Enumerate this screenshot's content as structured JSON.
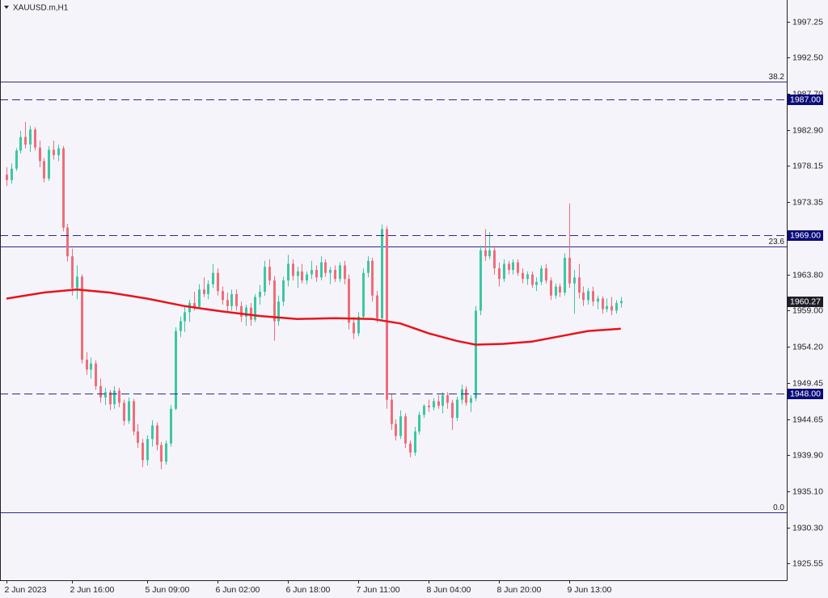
{
  "chart_data": {
    "type": "candlestick",
    "title": "XAUUSD.m,H1",
    "up_color": "#3cc7a2",
    "down_color": "#ef6d79",
    "xlim": [
      -1.38,
      166.38
    ],
    "ylim": [
      1923.3,
      2000.14
    ],
    "xticks": [
      {
        "value": 0,
        "label": "2 Jun 2023"
      },
      {
        "value": 14,
        "label": "2 Jun 16:00"
      },
      {
        "value": 30,
        "label": "5 Jun 09:00"
      },
      {
        "value": 45,
        "label": "6 Jun 02:00"
      },
      {
        "value": 60,
        "label": "6 Jun 18:00"
      },
      {
        "value": 75,
        "label": "7 Jun 11:00"
      },
      {
        "value": 90,
        "label": "8 Jun 04:00"
      },
      {
        "value": 105,
        "label": "8 Jun 20:00"
      },
      {
        "value": 120,
        "label": "9 Jun 13:00"
      }
    ],
    "yticks": [
      {
        "value": 1997.25,
        "label": "1997.25"
      },
      {
        "value": 1992.5,
        "label": "1992.50"
      },
      {
        "value": 1987.7,
        "label": "1987.70"
      },
      {
        "value": 1982.9,
        "label": "1982.90"
      },
      {
        "value": 1978.15,
        "label": "1978.15"
      },
      {
        "value": 1973.35,
        "label": "1973.35"
      },
      {
        "value": 1963.8,
        "label": "1963.80"
      },
      {
        "value": 1959.0,
        "label": "1959.00"
      },
      {
        "value": 1954.2,
        "label": "1954.20"
      },
      {
        "value": 1949.45,
        "label": "1949.45"
      },
      {
        "value": 1944.65,
        "label": "1944.65"
      },
      {
        "value": 1939.9,
        "label": "1939.90"
      },
      {
        "value": 1935.1,
        "label": "1935.10"
      },
      {
        "value": 1930.3,
        "label": "1930.30"
      },
      {
        "value": 1925.55,
        "label": "1925.55"
      }
    ],
    "fib_levels": [
      {
        "value": 1989.33,
        "label": "38.2"
      },
      {
        "value": 1967.5,
        "label": "23.6"
      },
      {
        "value": 1932.3,
        "label": "0.0"
      }
    ],
    "price_lines": [
      {
        "value": 1987,
        "label": "1987.00"
      },
      {
        "value": 1969,
        "label": "1969.00"
      },
      {
        "value": 1948,
        "label": "1948.00"
      }
    ],
    "current_price": {
      "value": 1960.27,
      "label": "1960.27"
    },
    "ma": {
      "color": "#e8141c",
      "x": [
        0,
        8,
        15,
        22,
        30,
        38,
        46,
        54,
        62,
        70,
        78,
        84,
        90,
        96,
        100,
        106,
        112,
        118,
        124,
        131
      ],
      "values": [
        1960.6,
        1961.4,
        1961.8,
        1961.4,
        1960.6,
        1959.6,
        1958.9,
        1958.3,
        1957.9,
        1958.0,
        1957.9,
        1957.3,
        1956.0,
        1955.0,
        1954.5,
        1954.6,
        1954.9,
        1955.6,
        1956.3,
        1956.6
      ]
    },
    "ohlc": [
      [
        1977.0,
        1978.0,
        1975.5,
        1976.3
      ],
      [
        1976.3,
        1978.5,
        1975.8,
        1977.8
      ],
      [
        1977.8,
        1980.5,
        1977.5,
        1980.2
      ],
      [
        1980.2,
        1982.8,
        1979.8,
        1982.0
      ],
      [
        1982.0,
        1984.0,
        1980.5,
        1981.0
      ],
      [
        1981.0,
        1983.5,
        1980.0,
        1983.0
      ],
      [
        1983.0,
        1983.3,
        1980.2,
        1980.6
      ],
      [
        1980.6,
        1981.5,
        1978.0,
        1978.8
      ],
      [
        1978.8,
        1979.2,
        1976.0,
        1976.5
      ],
      [
        1976.5,
        1980.8,
        1976.2,
        1980.3
      ],
      [
        1980.3,
        1981.5,
        1979.0,
        1979.6
      ],
      [
        1979.6,
        1981.0,
        1978.8,
        1980.5
      ],
      [
        1980.5,
        1980.8,
        1969.5,
        1970.0
      ],
      [
        1970.0,
        1970.5,
        1965.5,
        1966.2
      ],
      [
        1966.2,
        1967.2,
        1961.0,
        1962.0
      ],
      [
        1962.0,
        1965.0,
        1960.5,
        1963.5
      ],
      [
        1963.5,
        1963.8,
        1952.0,
        1952.5
      ],
      [
        1952.5,
        1953.5,
        1950.5,
        1951.2
      ],
      [
        1951.2,
        1952.8,
        1950.0,
        1952.0
      ],
      [
        1952.0,
        1952.4,
        1948.5,
        1949.0
      ],
      [
        1949.0,
        1950.0,
        1946.8,
        1947.5
      ],
      [
        1947.5,
        1948.8,
        1946.5,
        1948.2
      ],
      [
        1948.2,
        1948.5,
        1945.8,
        1946.6
      ],
      [
        1946.6,
        1949.0,
        1946.0,
        1948.4
      ],
      [
        1948.4,
        1948.8,
        1946.2,
        1946.8
      ],
      [
        1946.8,
        1947.2,
        1943.8,
        1944.4
      ],
      [
        1944.4,
        1947.5,
        1944.0,
        1947.0
      ],
      [
        1947.0,
        1947.3,
        1942.5,
        1943.0
      ],
      [
        1943.0,
        1944.0,
        1940.8,
        1941.5
      ],
      [
        1941.5,
        1942.0,
        1938.3,
        1939.2
      ],
      [
        1939.2,
        1942.5,
        1938.5,
        1942.0
      ],
      [
        1942.0,
        1944.5,
        1941.0,
        1943.8
      ],
      [
        1943.8,
        1944.2,
        1940.5,
        1941.2
      ],
      [
        1941.2,
        1941.6,
        1938.0,
        1939.0
      ],
      [
        1939.0,
        1941.8,
        1938.6,
        1941.4
      ],
      [
        1941.4,
        1946.5,
        1941.0,
        1946.0
      ],
      [
        1946.0,
        1956.8,
        1945.8,
        1956.3
      ],
      [
        1956.3,
        1958.2,
        1955.5,
        1957.6
      ],
      [
        1957.6,
        1959.5,
        1956.2,
        1958.8
      ],
      [
        1958.8,
        1960.4,
        1957.5,
        1960.0
      ],
      [
        1960.0,
        1961.5,
        1959.0,
        1959.5
      ],
      [
        1959.5,
        1962.5,
        1959.2,
        1961.8
      ],
      [
        1961.8,
        1963.4,
        1960.8,
        1961.2
      ],
      [
        1961.2,
        1963.0,
        1960.5,
        1962.5
      ],
      [
        1962.5,
        1965.2,
        1962.0,
        1964.0
      ],
      [
        1964.0,
        1964.6,
        1961.0,
        1961.6
      ],
      [
        1961.6,
        1962.2,
        1959.8,
        1960.4
      ],
      [
        1960.4,
        1961.4,
        1958.8,
        1959.6
      ],
      [
        1959.6,
        1961.8,
        1959.0,
        1961.2
      ],
      [
        1961.2,
        1961.8,
        1959.0,
        1959.6
      ],
      [
        1959.6,
        1960.2,
        1957.5,
        1958.2
      ],
      [
        1958.2,
        1959.8,
        1957.0,
        1959.4
      ],
      [
        1959.4,
        1960.0,
        1957.0,
        1957.8
      ],
      [
        1957.8,
        1961.2,
        1957.5,
        1960.8
      ],
      [
        1960.8,
        1962.4,
        1959.8,
        1961.5
      ],
      [
        1961.5,
        1965.6,
        1961.0,
        1964.8
      ],
      [
        1964.8,
        1965.8,
        1962.4,
        1963.0
      ],
      [
        1963.0,
        1963.6,
        1955.0,
        1957.6
      ],
      [
        1957.6,
        1961.0,
        1957.0,
        1960.2
      ],
      [
        1960.2,
        1963.5,
        1959.6,
        1963.0
      ],
      [
        1963.0,
        1966.4,
        1962.2,
        1965.2
      ],
      [
        1965.2,
        1965.8,
        1963.0,
        1963.6
      ],
      [
        1963.6,
        1964.8,
        1962.0,
        1964.2
      ],
      [
        1964.2,
        1965.2,
        1962.6,
        1963.0
      ],
      [
        1963.0,
        1964.2,
        1962.5,
        1963.8
      ],
      [
        1963.8,
        1965.6,
        1963.2,
        1964.4
      ],
      [
        1964.4,
        1965.0,
        1962.8,
        1963.4
      ],
      [
        1963.4,
        1966.2,
        1963.0,
        1965.4
      ],
      [
        1965.4,
        1965.8,
        1963.5,
        1964.0
      ],
      [
        1964.0,
        1964.8,
        1962.5,
        1964.4
      ],
      [
        1964.4,
        1965.0,
        1962.8,
        1963.2
      ],
      [
        1963.2,
        1965.4,
        1962.8,
        1965.0
      ],
      [
        1965.0,
        1965.6,
        1962.5,
        1963.2
      ],
      [
        1963.2,
        1963.8,
        1956.5,
        1957.4
      ],
      [
        1957.4,
        1958.2,
        1955.2,
        1956.0
      ],
      [
        1956.0,
        1958.8,
        1955.6,
        1958.2
      ],
      [
        1958.2,
        1964.6,
        1957.8,
        1964.0
      ],
      [
        1964.0,
        1966.2,
        1963.4,
        1965.6
      ],
      [
        1965.6,
        1966.0,
        1960.2,
        1961.0
      ],
      [
        1961.0,
        1961.6,
        1957.4,
        1958.0
      ],
      [
        1958.0,
        1970.4,
        1957.6,
        1969.8
      ],
      [
        1969.8,
        1970.2,
        1946.0,
        1947.2
      ],
      [
        1947.2,
        1948.0,
        1943.2,
        1944.0
      ],
      [
        1944.0,
        1944.6,
        1941.8,
        1942.4
      ],
      [
        1942.4,
        1945.8,
        1942.0,
        1945.0
      ],
      [
        1945.0,
        1945.4,
        1940.8,
        1941.4
      ],
      [
        1941.4,
        1941.8,
        1939.6,
        1940.2
      ],
      [
        1940.2,
        1943.6,
        1939.8,
        1943.0
      ],
      [
        1943.0,
        1945.6,
        1942.6,
        1945.2
      ],
      [
        1945.2,
        1946.6,
        1944.8,
        1946.4
      ],
      [
        1946.4,
        1947.2,
        1945.6,
        1946.2
      ],
      [
        1946.2,
        1947.4,
        1945.8,
        1947.0
      ],
      [
        1947.0,
        1947.8,
        1946.0,
        1946.4
      ],
      [
        1946.4,
        1948.2,
        1945.4,
        1947.8
      ],
      [
        1947.8,
        1948.2,
        1946.0,
        1946.8
      ],
      [
        1946.8,
        1947.2,
        1943.2,
        1944.8
      ],
      [
        1944.8,
        1947.6,
        1944.4,
        1947.2
      ],
      [
        1947.2,
        1949.2,
        1946.6,
        1948.6
      ],
      [
        1948.6,
        1949.0,
        1946.4,
        1946.8
      ],
      [
        1946.8,
        1947.8,
        1945.6,
        1947.4
      ],
      [
        1947.4,
        1959.6,
        1947.0,
        1959.0
      ],
      [
        1959.0,
        1967.6,
        1958.4,
        1967.0
      ],
      [
        1967.0,
        1969.8,
        1965.6,
        1966.2
      ],
      [
        1966.2,
        1969.4,
        1965.8,
        1967.0
      ],
      [
        1967.0,
        1967.6,
        1963.8,
        1964.6
      ],
      [
        1964.6,
        1965.4,
        1962.2,
        1963.2
      ],
      [
        1963.2,
        1965.8,
        1962.8,
        1965.2
      ],
      [
        1965.2,
        1965.6,
        1963.8,
        1964.4
      ],
      [
        1964.4,
        1965.8,
        1963.8,
        1965.4
      ],
      [
        1965.4,
        1965.8,
        1963.6,
        1964.0
      ],
      [
        1964.0,
        1964.6,
        1962.6,
        1963.2
      ],
      [
        1963.2,
        1964.2,
        1962.4,
        1963.8
      ],
      [
        1963.8,
        1964.2,
        1962.0,
        1962.4
      ],
      [
        1962.4,
        1963.4,
        1961.6,
        1962.8
      ],
      [
        1962.8,
        1965.0,
        1962.4,
        1964.6
      ],
      [
        1964.6,
        1965.2,
        1962.6,
        1963.0
      ],
      [
        1963.0,
        1963.4,
        1960.4,
        1961.0
      ],
      [
        1961.0,
        1962.6,
        1960.6,
        1962.2
      ],
      [
        1962.2,
        1962.6,
        1960.8,
        1961.4
      ],
      [
        1961.4,
        1966.6,
        1961.0,
        1966.0
      ],
      [
        1966.0,
        1973.2,
        1962.0,
        1962.6
      ],
      [
        1962.6,
        1964.4,
        1958.6,
        1963.4
      ],
      [
        1963.4,
        1965.2,
        1960.6,
        1961.4
      ],
      [
        1961.4,
        1962.2,
        1959.6,
        1960.4
      ],
      [
        1960.4,
        1962.0,
        1959.8,
        1961.6
      ],
      [
        1961.6,
        1962.2,
        1959.6,
        1960.2
      ],
      [
        1960.2,
        1961.0,
        1959.2,
        1960.6
      ],
      [
        1960.6,
        1960.9,
        1958.6,
        1959.2
      ],
      [
        1959.2,
        1960.6,
        1958.8,
        1959.6
      ],
      [
        1959.6,
        1960.8,
        1958.4,
        1959.0
      ],
      [
        1959.0,
        1960.4,
        1958.6,
        1960.0
      ],
      [
        1960.0,
        1960.8,
        1959.4,
        1960.27
      ]
    ]
  }
}
